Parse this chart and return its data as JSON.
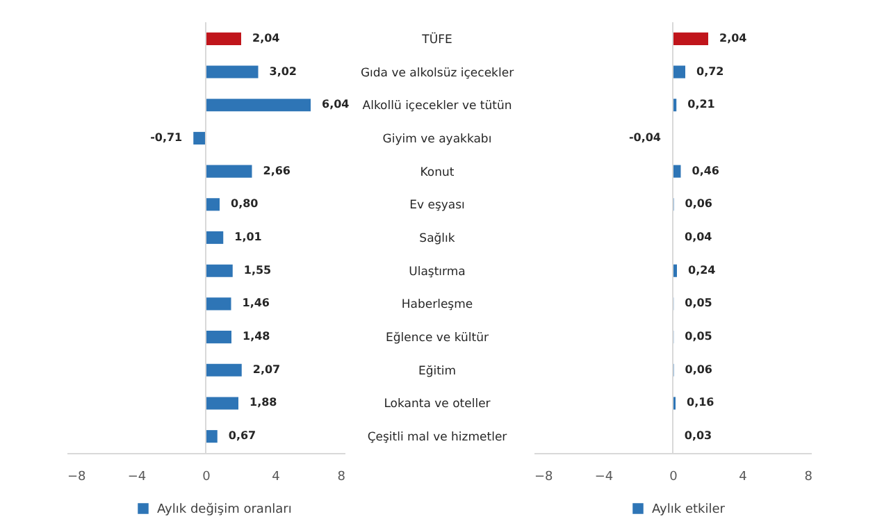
{
  "chart_data": [
    {
      "type": "bar",
      "orientation": "horizontal",
      "categories": [
        "TÜFE",
        "Gıda ve alkolsüz içecekler",
        "Alkollü içecekler ve tütün",
        "Giyim ve ayakkabı",
        "Konut",
        "Ev eşyası",
        "Sağlık",
        "Ulaştırma",
        "Haberleşme",
        "Eğlence ve kültür",
        "Eğitim",
        "Lokanta ve oteller",
        "Çeşitli mal ve hizmetler"
      ],
      "series": [
        {
          "name": "Aylık değişim oranları",
          "color": "#2e75b6",
          "colors": [
            "#c0151b",
            "#2e75b6",
            "#2e75b6",
            "#2e75b6",
            "#2e75b6",
            "#2e75b6",
            "#2e75b6",
            "#2e75b6",
            "#2e75b6",
            "#2e75b6",
            "#2e75b6",
            "#2e75b6",
            "#2e75b6"
          ],
          "values": [
            2.04,
            3.02,
            6.04,
            -0.71,
            2.66,
            0.8,
            1.01,
            1.55,
            1.46,
            1.48,
            2.07,
            1.88,
            0.67
          ],
          "value_labels": [
            "2,04",
            "3,02",
            "6,04",
            "-0,71",
            "2,66",
            "0,80",
            "1,01",
            "1,55",
            "1,46",
            "1,48",
            "2,07",
            "1,88",
            "0,67"
          ]
        }
      ],
      "xlim": [
        -8,
        8
      ],
      "xticks": [
        -8,
        -4,
        0,
        4,
        8
      ],
      "ref_lines": [
        {
          "axis": "x",
          "value": 0,
          "color": "#d9d9d9"
        }
      ],
      "legend": "bottom"
    },
    {
      "type": "bar",
      "orientation": "horizontal",
      "categories": [
        null,
        null,
        null,
        null,
        null,
        null,
        null,
        null,
        null,
        null,
        null,
        null,
        null
      ],
      "series": [
        {
          "name": "Aylık etkiler",
          "color": "#2e75b6",
          "colors": [
            "#c0151b",
            "#2e75b6",
            "#2e75b6",
            "#2e75b6",
            "#2e75b6",
            "#2e75b6",
            "#2e75b6",
            "#2e75b6",
            "#2e75b6",
            "#2e75b6",
            "#2e75b6",
            "#2e75b6",
            "#2e75b6"
          ],
          "values": [
            2.04,
            0.72,
            0.21,
            -0.04,
            0.46,
            0.06,
            0.04,
            0.24,
            0.05,
            0.05,
            0.06,
            0.16,
            0.03
          ],
          "value_labels": [
            "2,04",
            "0,72",
            "0,21",
            "-0,04",
            "0,46",
            "0,06",
            "0,04",
            "0,24",
            "0,05",
            "0,05",
            "0,06",
            "0,16",
            "0,03"
          ]
        }
      ],
      "xlim": [
        -8,
        8
      ],
      "xticks": [
        -8,
        -4,
        0,
        4,
        8
      ],
      "ref_lines": [
        {
          "axis": "x",
          "value": 0,
          "color": "#d9d9d9"
        }
      ],
      "legend": "bottom",
      "tick_labels": "x"
    }
  ]
}
